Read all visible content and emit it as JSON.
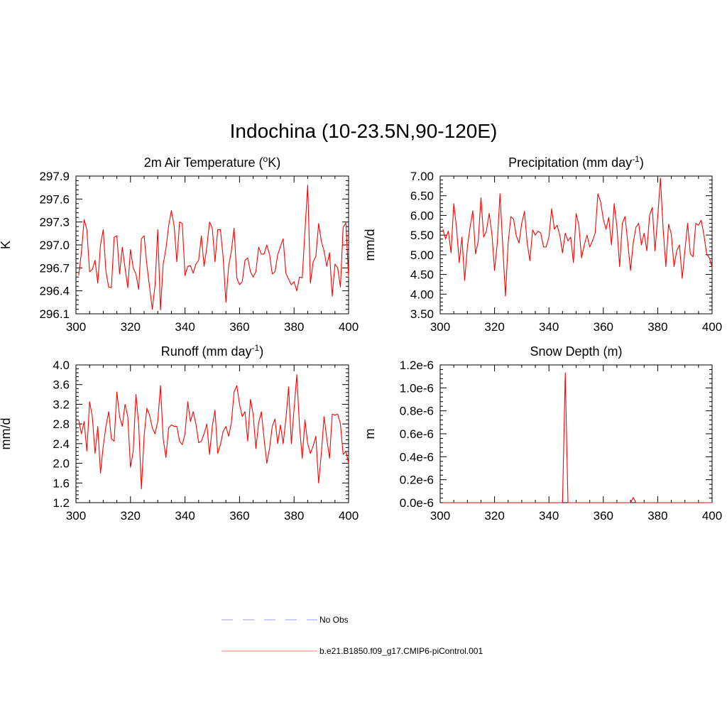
{
  "figure": {
    "title": "Indochina (10-23.5N,90-120E)"
  },
  "legend": {
    "entries": [
      {
        "label": "No Obs",
        "color": "#9999ff",
        "dash": true
      },
      {
        "label": "b.e21.B1850.f09_g17.CMIP6-piControl.001",
        "color": "#ff8080",
        "dash": false
      }
    ]
  },
  "chart_data": [
    {
      "type": "line",
      "title_main": "2m Air Temperature (",
      "title_sup": "o",
      "title_tail": "K)",
      "ylabel": "K",
      "xlim": [
        300,
        400
      ],
      "ylim": [
        296.1,
        297.9
      ],
      "yticks": [
        "296.1",
        "296.4",
        "296.7",
        "297.0",
        "297.3",
        "297.6",
        "297.9"
      ],
      "xticks": [
        "300",
        "320",
        "340",
        "360",
        "380",
        "400"
      ],
      "series": [
        {
          "name": "b.e21.B1850.f09_g17.CMIP6-piControl.001",
          "color": "#ff0000",
          "x_start": 301,
          "values": [
            296.6,
            296.9,
            297.33,
            297.2,
            296.65,
            296.68,
            296.8,
            296.5,
            297.0,
            297.2,
            296.65,
            296.45,
            296.44,
            297.1,
            297.12,
            296.62,
            296.97,
            296.7,
            296.44,
            296.94,
            296.7,
            296.62,
            296.42,
            297.08,
            297.12,
            296.74,
            296.45,
            296.16,
            296.47,
            297.2,
            296.15,
            296.75,
            296.95,
            297.25,
            297.45,
            297.25,
            296.78,
            297.3,
            297.28,
            296.6,
            296.72,
            296.73,
            296.63,
            296.75,
            296.8,
            297.12,
            296.72,
            296.97,
            297.3,
            297.22,
            296.78,
            297.2,
            297.2,
            296.83,
            296.25,
            296.72,
            296.92,
            297.22,
            296.57,
            296.48,
            296.52,
            296.8,
            296.83,
            296.65,
            296.58,
            296.65,
            296.97,
            296.88,
            296.88,
            297.0,
            296.88,
            296.62,
            296.65,
            296.87,
            296.98,
            297.08,
            296.63,
            296.55,
            296.48,
            296.52,
            296.4,
            296.58,
            296.57,
            297.18,
            297.78,
            296.5,
            296.78,
            296.85,
            297.28,
            297.05,
            296.92,
            296.72,
            296.9,
            296.33,
            296.75,
            296.7,
            296.45,
            297.23,
            297.29,
            296.58
          ]
        }
      ]
    },
    {
      "type": "line",
      "title_main": "Precipitation (mm day",
      "title_sup": "-1",
      "title_tail": ")",
      "ylabel": "mm/d",
      "xlim": [
        300,
        400
      ],
      "ylim": [
        3.5,
        7.0
      ],
      "yticks": [
        "3.50",
        "4.00",
        "4.50",
        "5.00",
        "5.50",
        "6.00",
        "6.50",
        "7.00"
      ],
      "xticks": [
        "300",
        "320",
        "340",
        "360",
        "380",
        "400"
      ],
      "series": [
        {
          "name": "b.e21.B1850.f09_g17.CMIP6-piControl.001",
          "color": "#ff0000",
          "x_start": 301,
          "values": [
            5.65,
            5.4,
            5.6,
            5.05,
            6.3,
            5.7,
            4.8,
            5.45,
            4.35,
            5.2,
            5.7,
            6.12,
            5.02,
            5.35,
            6.45,
            5.45,
            5.6,
            6.05,
            5.55,
            4.6,
            5.3,
            6.55,
            5.25,
            3.95,
            5.3,
            5.97,
            5.9,
            5.48,
            5.3,
            5.8,
            6.1,
            5.3,
            4.85,
            5.63,
            5.5,
            5.6,
            5.55,
            5.2,
            5.2,
            5.45,
            6.17,
            5.65,
            5.75,
            5.5,
            5.05,
            5.55,
            5.35,
            5.45,
            4.8,
            6.05,
            5.75,
            4.92,
            5.25,
            5.5,
            5.2,
            5.35,
            5.55,
            6.55,
            6.35,
            5.9,
            5.65,
            5.95,
            5.25,
            6.3,
            5.7,
            4.7,
            5.8,
            5.97,
            5.3,
            4.6,
            5.3,
            5.7,
            5.8,
            5.25,
            5.55,
            5.1,
            6.0,
            6.2,
            5.1,
            5.95,
            6.95,
            5.65,
            4.7,
            5.78,
            5.52,
            4.7,
            5.1,
            5.25,
            4.4,
            5.1,
            5.8,
            5.02,
            4.95,
            5.8,
            5.75,
            5.88,
            5.5,
            5.02,
            4.92,
            4.68
          ]
        }
      ]
    },
    {
      "type": "line",
      "title_main": "Runoff (mm day",
      "title_sup": "-1",
      "title_tail": ")",
      "ylabel": "mm/d",
      "xlim": [
        300,
        400
      ],
      "ylim": [
        1.2,
        4.0
      ],
      "yticks": [
        "1.2",
        "1.6",
        "2.0",
        "2.4",
        "2.8",
        "3.2",
        "3.6",
        "4.0"
      ],
      "xticks": [
        "300",
        "320",
        "340",
        "360",
        "380",
        "400"
      ],
      "series": [
        {
          "name": "b.e21.B1850.f09_g17.CMIP6-piControl.001",
          "color": "#ff0000",
          "x_start": 301,
          "values": [
            2.88,
            2.6,
            2.85,
            2.25,
            3.25,
            2.95,
            2.2,
            2.75,
            1.8,
            2.35,
            2.75,
            3.05,
            2.5,
            2.45,
            3.45,
            2.95,
            2.75,
            3.2,
            2.95,
            1.92,
            2.25,
            3.4,
            2.8,
            1.48,
            2.55,
            3.12,
            2.98,
            2.72,
            2.6,
            2.85,
            3.58,
            2.5,
            2.12,
            2.72,
            2.78,
            2.75,
            2.75,
            2.45,
            2.38,
            2.6,
            3.25,
            2.85,
            3.05,
            2.8,
            2.42,
            2.45,
            2.6,
            2.8,
            2.18,
            2.75,
            3.08,
            2.2,
            2.38,
            2.65,
            2.75,
            2.55,
            2.82,
            3.45,
            3.58,
            3.2,
            2.95,
            3.05,
            2.45,
            3.3,
            3.0,
            2.3,
            2.82,
            3.05,
            2.5,
            2.0,
            2.3,
            2.75,
            2.9,
            2.4,
            2.78,
            2.4,
            2.9,
            3.55,
            2.4,
            3.1,
            3.8,
            2.75,
            2.1,
            2.88,
            2.4,
            2.2,
            2.35,
            2.55,
            1.6,
            2.2,
            2.95,
            2.5,
            2.1,
            3.0,
            2.98,
            3.0,
            2.8,
            2.18,
            2.25,
            2.0
          ]
        }
      ]
    },
    {
      "type": "line",
      "title_main": "Snow Depth (m)",
      "title_sup": "",
      "title_tail": "",
      "ylabel": "m",
      "xlim": [
        300,
        400
      ],
      "ylim": [
        0.0,
        1.2e-06
      ],
      "yticks": [
        "0.0e-6",
        "0.2e-6",
        "0.4e-6",
        "0.6e-6",
        "0.8e-6",
        "1.0e-6",
        "1.2e-6"
      ],
      "xticks": [
        "300",
        "320",
        "340",
        "360",
        "380",
        "400"
      ],
      "series": [
        {
          "name": "b.e21.B1850.f09_g17.CMIP6-piControl.001",
          "color": "#ff0000",
          "x_start": 301,
          "values": [
            0,
            0,
            0,
            0,
            0,
            0,
            0,
            0,
            0,
            0,
            0,
            0,
            0,
            0,
            0,
            0,
            0,
            0,
            0,
            0,
            0,
            0,
            0,
            0,
            0,
            0,
            0,
            0,
            0,
            0,
            0,
            0,
            0,
            0,
            0,
            0,
            0,
            0,
            0,
            0,
            0,
            0,
            0,
            0,
            0,
            1.13e-06,
            0,
            0,
            0,
            0,
            0,
            0,
            0,
            0,
            0,
            0,
            0,
            0,
            0,
            0,
            0,
            0,
            0,
            0,
            0,
            0,
            0,
            0,
            0,
            0,
            4.5e-08,
            0,
            0,
            0,
            0,
            0,
            0,
            0,
            0,
            0,
            0,
            0,
            0,
            0,
            0,
            0,
            0,
            0,
            0,
            0,
            0,
            0,
            0,
            0,
            0,
            0,
            0,
            0,
            0,
            0
          ]
        }
      ]
    }
  ]
}
